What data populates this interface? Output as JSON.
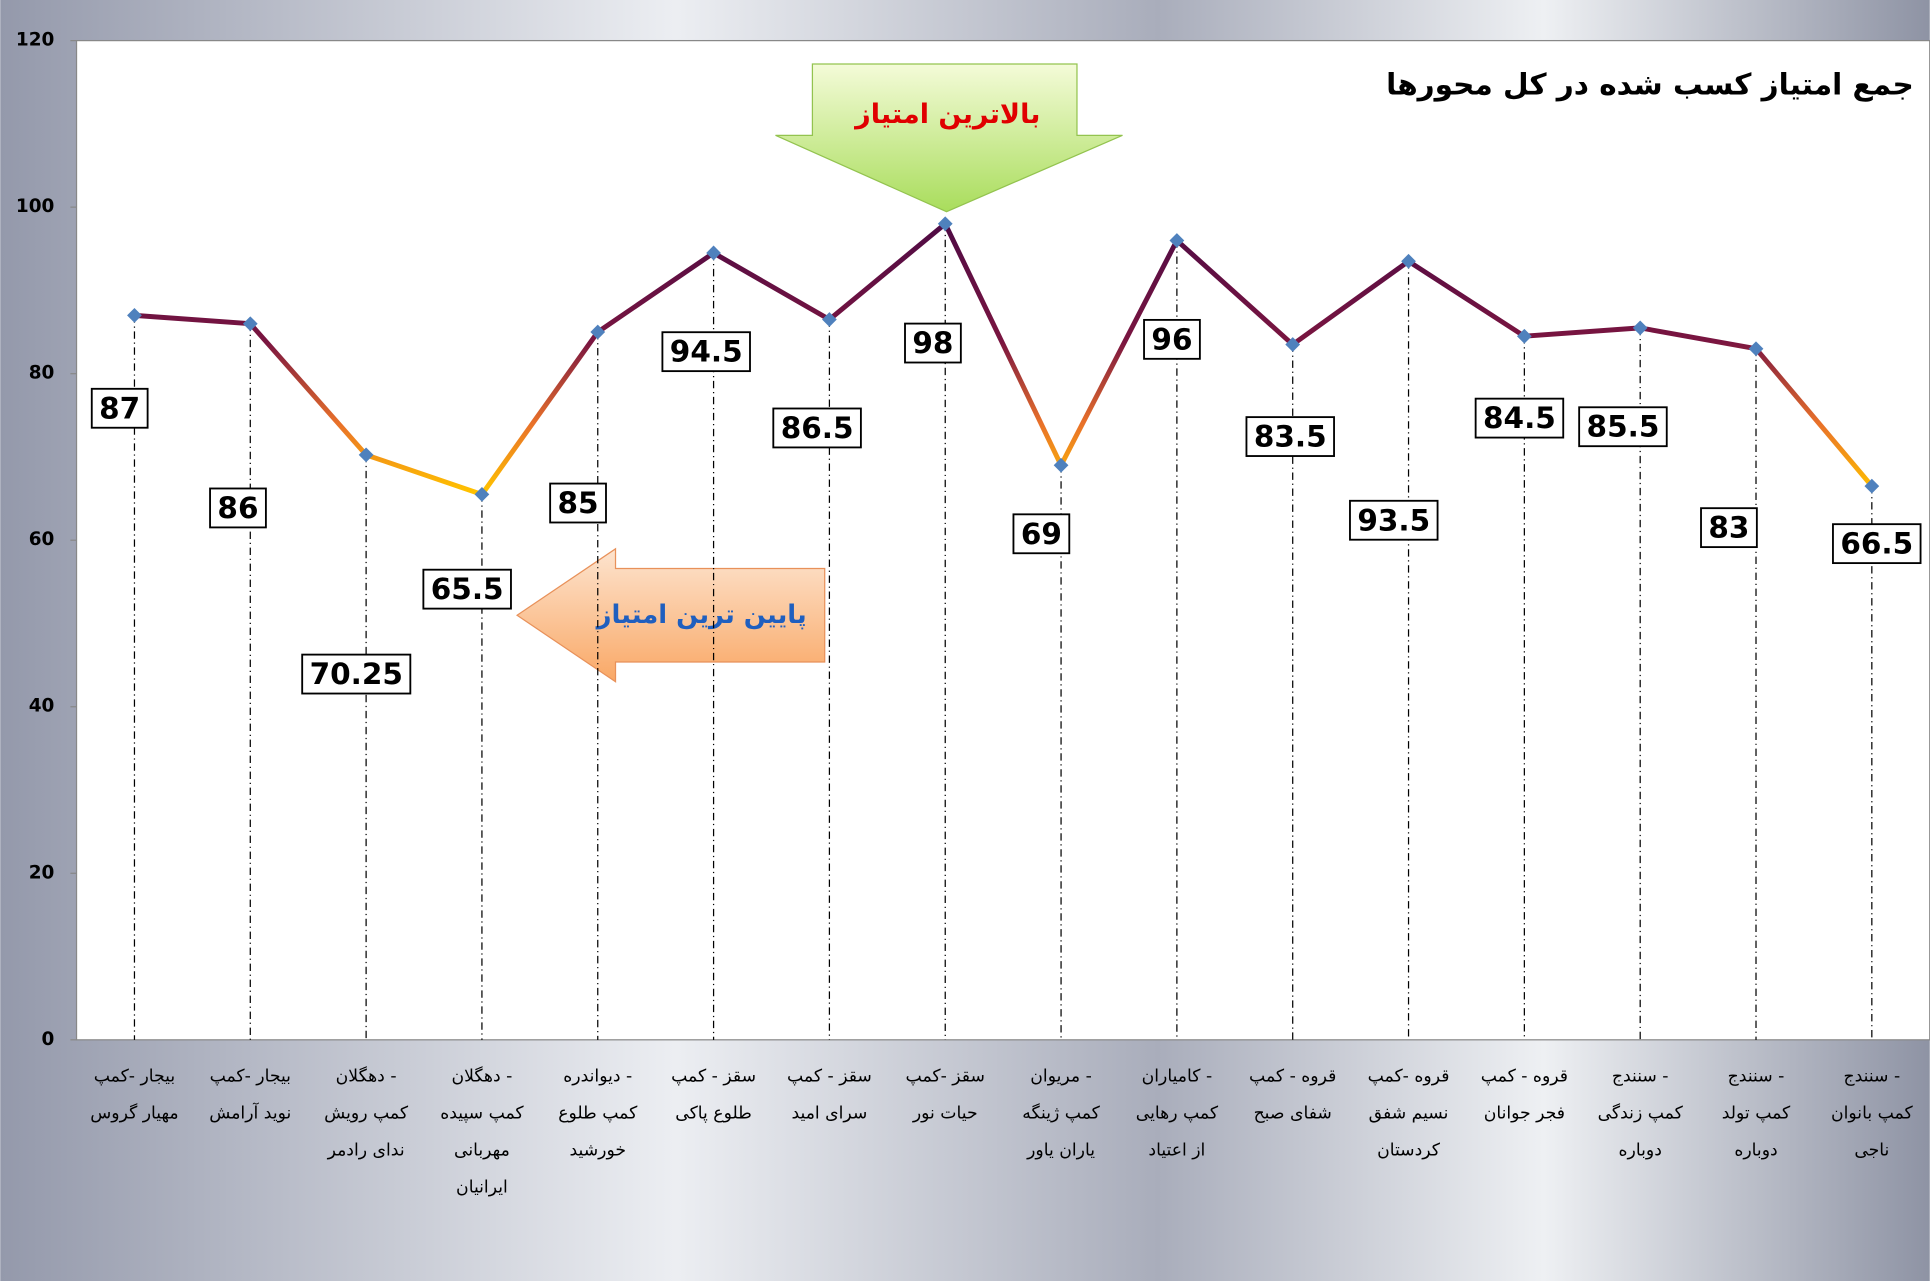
{
  "chart_data": {
    "type": "line",
    "title": "جمع امتیاز کسب شده در کل محورها",
    "annotations": [
      "بالاترین امتیاز",
      "پایین ترین امتیاز"
    ],
    "categories": [
      "بیجار -کمپ\nمهیار گروس",
      "بیجار -کمپ\nنوید آرامش",
      "دهگلان -\nکمپ رویش\nندای رادمر",
      "دهگلان -\nکمپ سپیده\nمهربانی\nایرانیان",
      "دیواندره -\nکمپ طلوع\nخورشید",
      "سقز - کمپ\nطلوع پاکی",
      "سقز - کمپ\nسرای امید",
      "سقز -کمپ\nحیات نور",
      "مریوان -\nکمپ ژینگه\nیاران یاور",
      "کامیاران -\nکمپ رهایی\nاز اعتیاد",
      "قروه - کمپ\nشفای صبح",
      "قروه -کمپ\nنسیم شفق\nکردستان",
      "قروه - کمپ\nفجر جوانان",
      "سنندج -\nکمپ زندگی\nدوباره",
      "سنندج -\nکمپ تولد\nدوباره",
      "سنندج -\nکمپ بانوان\nناجی"
    ],
    "values": [
      87,
      86,
      70.25,
      65.5,
      85,
      94.5,
      86.5,
      98,
      69,
      96,
      83.5,
      93.5,
      84.5,
      85.5,
      83,
      66.5
    ],
    "color": "#4e0b45",
    "marker_color": "#4f81bd",
    "ylim": [
      0,
      120
    ],
    "yticks": [
      0,
      20,
      40,
      60,
      80,
      100,
      120
    ]
  }
}
